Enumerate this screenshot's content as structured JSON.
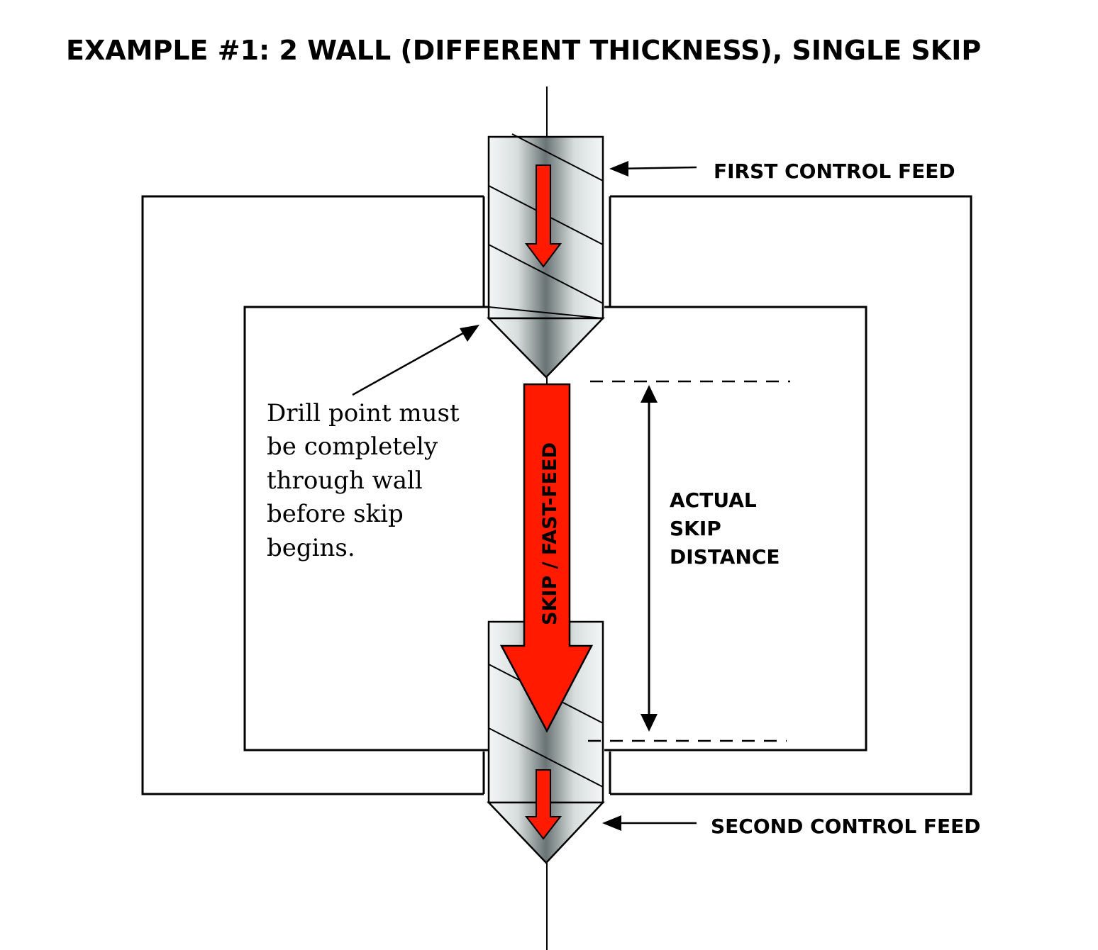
{
  "title": "EXAMPLE #1:  2 WALL (DIFFERENT THICKNESS), SINGLE SKIP",
  "labels": {
    "first_control_feed": "FIRST CONTROL FEED",
    "second_control_feed": "SECOND CONTROL FEED",
    "skip_arrow": "SKIP / FAST-FEED",
    "skip_distance": [
      "ACTUAL",
      "SKIP",
      "DISTANCE"
    ],
    "note": [
      "Drill point must",
      "be completely",
      "through wall",
      "before skip",
      "begins."
    ]
  },
  "colors": {
    "arrow_red": "#ff1a00",
    "line": "#000000",
    "drill_dark": "#6a7474",
    "drill_light": "#f4f6f6"
  }
}
